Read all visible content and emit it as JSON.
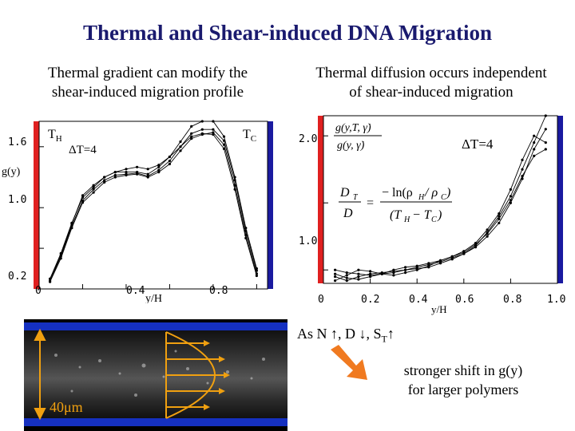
{
  "slide": {
    "title": "Thermal and Shear-induced DNA Migration",
    "left_caption_line1": "Thermal gradient can modify the",
    "left_caption_line2": "shear-induced migration profile",
    "right_caption_line1": "Thermal diffusion occurs independent",
    "right_caption_line2": "of  shear-induced migration",
    "bullet_prefix": "As N ↑, D ↓, S",
    "bullet_sub": "T",
    "bullet_suffix": "↑",
    "shift_line1": "stronger shift in g(y)",
    "shift_line2": "for larger polymers",
    "channel_label": "40μm"
  },
  "chart_data": [
    {
      "type": "line",
      "ylabel": "g(y)",
      "xlabel": "y/H",
      "xlim": [
        0,
        1.05
      ],
      "ylim": [
        0.2,
        1.85
      ],
      "yticks": [
        "1.6",
        "1.0",
        "0.2"
      ],
      "xticks": [
        "0",
        "0.4",
        "0.8"
      ],
      "annotations": {
        "th": "T",
        "th_sub": "H",
        "tc": "T",
        "tc_sub": "C",
        "delta": "ΔT=4"
      },
      "x": [
        0.05,
        0.1,
        0.15,
        0.2,
        0.25,
        0.3,
        0.35,
        0.4,
        0.45,
        0.5,
        0.55,
        0.6,
        0.65,
        0.7,
        0.75,
        0.8,
        0.85,
        0.9,
        0.95,
        1.0
      ],
      "series": [
        {
          "values": [
            0.3,
            0.55,
            0.85,
            1.1,
            1.2,
            1.3,
            1.35,
            1.35,
            1.35,
            1.33,
            1.4,
            1.5,
            1.65,
            1.8,
            1.85,
            1.85,
            1.7,
            1.3,
            0.8,
            0.4
          ]
        },
        {
          "values": [
            0.28,
            0.52,
            0.82,
            1.07,
            1.18,
            1.27,
            1.32,
            1.33,
            1.34,
            1.31,
            1.37,
            1.46,
            1.6,
            1.73,
            1.77,
            1.77,
            1.66,
            1.27,
            0.77,
            0.38
          ]
        },
        {
          "values": [
            0.27,
            0.5,
            0.8,
            1.05,
            1.15,
            1.25,
            1.3,
            1.32,
            1.33,
            1.3,
            1.35,
            1.43,
            1.56,
            1.68,
            1.72,
            1.74,
            1.62,
            1.22,
            0.73,
            0.35
          ]
        },
        {
          "values": [
            0.3,
            0.53,
            0.84,
            1.12,
            1.22,
            1.3,
            1.35,
            1.38,
            1.4,
            1.38,
            1.42,
            1.5,
            1.6,
            1.7,
            1.73,
            1.72,
            1.58,
            1.18,
            0.7,
            0.33
          ]
        }
      ]
    },
    {
      "type": "line",
      "xlabel": "y/H",
      "xlim": [
        0,
        1.0
      ],
      "ylim": [
        0.9,
        2.15
      ],
      "yticks": [
        "2.0",
        "1.0"
      ],
      "xticks": [
        "0",
        "0.2",
        "0.4",
        "0.6",
        "0.8",
        "1.0"
      ],
      "annotations": {
        "delta": "ΔT=4"
      },
      "x": [
        0.05,
        0.1,
        0.15,
        0.2,
        0.25,
        0.3,
        0.35,
        0.4,
        0.45,
        0.5,
        0.55,
        0.6,
        0.65,
        0.7,
        0.75,
        0.8,
        0.85,
        0.9,
        0.95
      ],
      "series": [
        {
          "values": [
            0.95,
            0.92,
            0.95,
            0.97,
            0.98,
            0.99,
            1.0,
            1.01,
            1.02,
            1.05,
            1.08,
            1.12,
            1.18,
            1.28,
            1.4,
            1.55,
            1.75,
            1.95,
            2.15
          ]
        },
        {
          "values": [
            1.0,
            0.98,
            0.97,
            0.96,
            0.97,
            0.98,
            1.0,
            1.02,
            1.04,
            1.06,
            1.09,
            1.12,
            1.17,
            1.25,
            1.35,
            1.5,
            1.68,
            1.9,
            2.05
          ]
        },
        {
          "values": [
            0.92,
            0.96,
            1.0,
            0.99,
            0.97,
            0.96,
            0.98,
            1.0,
            1.03,
            1.07,
            1.1,
            1.14,
            1.2,
            1.3,
            1.42,
            1.6,
            1.82,
            2.0,
            1.95
          ]
        },
        {
          "values": [
            0.97,
            0.94,
            0.93,
            0.95,
            0.97,
            1.0,
            1.02,
            1.03,
            1.05,
            1.07,
            1.1,
            1.13,
            1.19,
            1.27,
            1.38,
            1.52,
            1.7,
            1.85,
            1.9
          ]
        }
      ]
    }
  ]
}
